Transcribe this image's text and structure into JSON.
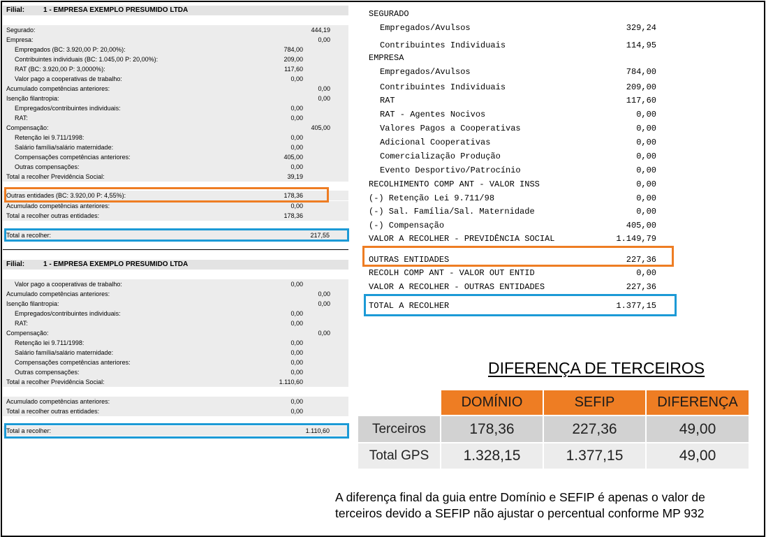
{
  "report": {
    "section1": {
      "filial_label": "Filial:",
      "filial_value": "1 - EMPRESA EXEMPLO PRESUMIDO LTDA",
      "rows": [
        {
          "label": "Segurado:",
          "v2": "444,19"
        },
        {
          "label": "Empresa:",
          "v2": "0,00"
        },
        {
          "label": "Empregados (BC: 3.920,00 P: 20,00%):",
          "v1": "784,00"
        },
        {
          "label": "Contribuintes individuais (BC: 1.045,00 P: 20,00%):",
          "v1": "209,00"
        },
        {
          "label": "RAT (BC: 3.920,00 P: 3,0000%):",
          "v1": "117,60"
        },
        {
          "label": "Valor pago a cooperativas de trabalho:",
          "v1": "0,00"
        },
        {
          "label": "Acumulado competências anteriores:",
          "v2": "0,00"
        },
        {
          "label": "Isenção filantropia:",
          "v2": "0,00"
        },
        {
          "label": "Empregados/contribuintes individuais:",
          "v1": "0,00"
        },
        {
          "label": "RAT:",
          "v1": "0,00"
        },
        {
          "label": "Compensação:",
          "v2": "405,00"
        },
        {
          "label": "Retenção lei 9.711/1998:",
          "v1": "0,00"
        },
        {
          "label": "Salário família/salário maternidade:",
          "v1": "0,00"
        },
        {
          "label": "Compensações competências anteriores:",
          "v1": "405,00"
        },
        {
          "label": "Outras compensações:",
          "v1": "0,00"
        },
        {
          "label": "Total a recolher Previdência Social:",
          "v1": "39,19"
        },
        {
          "label": "Outras entidades (BC: 3.920,00 P: 4,55%):",
          "v1": "178,36"
        },
        {
          "label": "Acumulado competências anteriores:",
          "v1": "0,00"
        },
        {
          "label": "Total a recolher outras entidades:",
          "v1": "178,36"
        },
        {
          "label": "Total a recolher:",
          "v2": "217,55"
        }
      ]
    },
    "section2": {
      "filial_label": "Filial:",
      "filial_value": "1 - EMPRESA EXEMPLO PRESUMIDO LTDA",
      "rows": [
        {
          "label": "Valor pago a cooperativas de trabalho:",
          "v1": "0,00"
        },
        {
          "label": "Acumulado competências anteriores:",
          "v2": "0,00"
        },
        {
          "label": "Isenção filantropia:",
          "v2": "0,00"
        },
        {
          "label": "Empregados/contribuintes individuais:",
          "v1": "0,00"
        },
        {
          "label": "RAT:",
          "v1": "0,00"
        },
        {
          "label": "Compensação:",
          "v2": "0,00"
        },
        {
          "label": "Retenção lei 9.711/1998:",
          "v1": "0,00"
        },
        {
          "label": "Salário família/salário maternidade:",
          "v1": "0,00"
        },
        {
          "label": "Compensações competências anteriores:",
          "v1": "0,00"
        },
        {
          "label": "Outras compensações:",
          "v1": "0,00"
        },
        {
          "label": "Total a recolher Previdência Social:",
          "v1": "1.110,60"
        },
        {
          "label": "Acumulado competências anteriores:",
          "v1": "0,00"
        },
        {
          "label": "Total a recolher outras entidades:",
          "v1": "0,00"
        },
        {
          "label": "Total a recolher:",
          "v2": "1.110,60"
        }
      ]
    }
  },
  "sefip": {
    "lines": [
      {
        "label": "SEGURADO",
        "value": ""
      },
      {
        "label": "Empregados/Avulsos",
        "value": "329,24"
      },
      {
        "label": "Contribuintes Individuais",
        "value": "114,95"
      },
      {
        "label": "EMPRESA",
        "value": ""
      },
      {
        "label": "Empregados/Avulsos",
        "value": "784,00"
      },
      {
        "label": "Contribuintes Individuais",
        "value": "209,00"
      },
      {
        "label": "RAT",
        "value": "117,60"
      },
      {
        "label": "RAT - Agentes Nocivos",
        "value": "0,00"
      },
      {
        "label": "Valores Pagos a Cooperativas",
        "value": "0,00"
      },
      {
        "label": "Adicional Cooperativas",
        "value": "0,00"
      },
      {
        "label": "Comercialização Produção",
        "value": "0,00"
      },
      {
        "label": "Evento Desportivo/Patrocínio",
        "value": "0,00"
      },
      {
        "label": "RECOLHIMENTO COMP ANT - VALOR INSS",
        "value": "0,00"
      },
      {
        "label": "(-) Retenção Lei 9.711/98",
        "value": "0,00"
      },
      {
        "label": "(-) Sal. Família/Sal. Maternidade",
        "value": "0,00"
      },
      {
        "label": "(-) Compensação",
        "value": "405,00"
      },
      {
        "label": "VALOR A RECOLHER - PREVIDÊNCIA SOCIAL",
        "value": "1.149,79"
      },
      {
        "label": "OUTRAS ENTIDADES",
        "value": "227,36"
      },
      {
        "label": "RECOLH COMP ANT - VALOR OUT ENTID",
        "value": "0,00"
      },
      {
        "label": "VALOR A RECOLHER - OUTRAS ENTIDADES",
        "value": "227,36"
      },
      {
        "label": "TOTAL A RECOLHER",
        "value": "1.377,15"
      }
    ]
  },
  "comparison": {
    "title": "DIFERENÇA DE TERCEIROS",
    "headers": [
      "DOMÍNIO",
      "SEFIP",
      "DIFERENÇA"
    ],
    "rows": [
      {
        "label": "Terceiros",
        "values": [
          "178,36",
          "227,36",
          "49,00"
        ]
      },
      {
        "label": "Total GPS",
        "values": [
          "1.328,15",
          "1.377,15",
          "49,00"
        ]
      }
    ]
  },
  "note": "A diferença final da guia entre Domínio e SEFIP é apenas o valor de terceiros devido a SEFIP não ajustar o percentual conforme MP 932",
  "colors": {
    "highlight_orange": "#ee7d23",
    "highlight_blue": "#1c9ad6",
    "table_header": "#ee7d23"
  }
}
